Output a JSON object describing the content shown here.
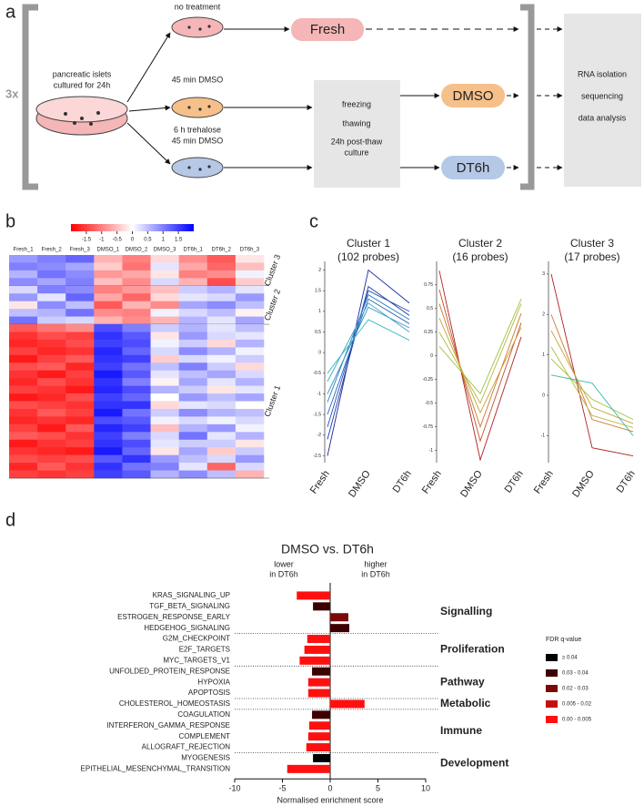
{
  "panel_labels": [
    "a",
    "b",
    "c",
    "d"
  ],
  "panel_a": {
    "replicates": "3x",
    "source_label": [
      "pancreatic islets",
      "cultured for 24h"
    ],
    "treatments": [
      [
        "no treatment"
      ],
      [
        "45 min DMSO"
      ],
      [
        "6 h trehalose",
        "45 min DMSO"
      ]
    ],
    "conditions": [
      "Fresh",
      "DMSO",
      "DT6h"
    ],
    "process": [
      "freezing",
      "thawing",
      "24h post-thaw",
      "culture"
    ],
    "analysis": [
      "RNA isolation",
      "sequencing",
      "data analysis"
    ]
  },
  "chart_data": [
    {
      "type": "heatmap",
      "columns": [
        "Fresh_1",
        "Fresh_2",
        "Fresh_3",
        "DMSO_1",
        "DMSO_2",
        "DMSO_3",
        "DT6h_1",
        "DT6h_2",
        "DT6h_3"
      ],
      "zlim": [
        -2,
        2
      ],
      "zticks": [
        -1.5,
        -1,
        -0.5,
        0,
        0.5,
        1,
        1.5
      ],
      "low_color": "#ff0000",
      "mid_color": "#ffffff",
      "high_color": "#0000ff",
      "clusters": [
        {
          "label": "Cluster 3",
          "rows": [
            [
              0.8,
              1.0,
              1.2,
              -0.6,
              -1.0,
              -0.3,
              -0.9,
              -1.3,
              -0.2
            ],
            [
              1.0,
              0.9,
              0.7,
              -0.4,
              -1.1,
              0.2,
              -0.7,
              -1.2,
              -0.5
            ],
            [
              0.6,
              1.1,
              0.9,
              -0.8,
              -0.7,
              -0.2,
              -1.0,
              -0.9,
              0.1
            ],
            [
              0.9,
              0.7,
              1.0,
              -0.5,
              -0.9,
              0.3,
              -0.6,
              -1.4,
              -0.4
            ]
          ]
        },
        {
          "label": "Cluster 2",
          "rows": [
            [
              0.3,
              1.0,
              0.9,
              -1.0,
              -0.8,
              -0.5,
              0.4,
              0.6,
              0.2
            ],
            [
              0.8,
              0.2,
              1.2,
              -0.7,
              -1.2,
              -0.3,
              0.2,
              0.3,
              0.8
            ],
            [
              -0.2,
              0.9,
              0.5,
              -1.3,
              -0.6,
              -0.9,
              0.7,
              0.9,
              0.5
            ],
            [
              0.5,
              0.6,
              1.1,
              -0.9,
              -1.0,
              0.1,
              0.3,
              0.5,
              -0.1
            ],
            [
              1.1,
              0.4,
              0.3,
              -0.6,
              -0.9,
              -0.6,
              0.6,
              0.2,
              0.7
            ]
          ]
        },
        {
          "label": "Cluster 1",
          "rows": [
            [
              -1.3,
              -1.1,
              -0.9,
              1.4,
              1.0,
              0.4,
              0.6,
              0.2,
              0.5
            ],
            [
              -1.6,
              -1.4,
              -1.5,
              1.6,
              1.3,
              -0.2,
              0.8,
              0.3,
              0.2
            ],
            [
              -1.7,
              -1.6,
              -1.4,
              1.5,
              1.4,
              0.1,
              0.4,
              -0.3,
              0.6
            ],
            [
              -1.5,
              -1.7,
              -1.6,
              1.7,
              1.2,
              0.3,
              0.9,
              0.6,
              0.1
            ],
            [
              -1.8,
              -1.5,
              -1.3,
              1.6,
              1.5,
              -0.4,
              0.3,
              0.1,
              0.4
            ],
            [
              -1.4,
              -1.3,
              -1.7,
              1.5,
              1.1,
              0.5,
              1.0,
              0.4,
              -0.3
            ],
            [
              -1.6,
              -1.8,
              -1.5,
              1.8,
              1.3,
              0.2,
              0.5,
              0.7,
              0.3
            ],
            [
              -1.7,
              -1.4,
              -1.6,
              1.6,
              1.0,
              -0.1,
              0.7,
              0.2,
              0.6
            ],
            [
              -1.5,
              -1.6,
              -1.8,
              1.7,
              1.4,
              0.6,
              0.4,
              -0.2,
              0.2
            ],
            [
              -1.8,
              -1.7,
              -1.4,
              1.5,
              1.2,
              0.0,
              0.8,
              0.5,
              0.7
            ],
            [
              -1.4,
              -1.5,
              -1.6,
              1.6,
              1.6,
              -0.3,
              0.2,
              0.3,
              0.0
            ],
            [
              -1.6,
              -1.3,
              -1.5,
              1.8,
              1.1,
              0.4,
              0.9,
              0.6,
              0.5
            ],
            [
              -1.7,
              -1.6,
              -1.7,
              1.4,
              1.3,
              0.1,
              0.3,
              0.1,
              0.3
            ],
            [
              -1.5,
              -1.8,
              -1.3,
              1.7,
              1.5,
              -0.5,
              0.6,
              0.8,
              0.1
            ],
            [
              -1.3,
              -1.4,
              -1.6,
              1.5,
              1.0,
              0.3,
              1.1,
              0.2,
              0.6
            ],
            [
              -1.8,
              -1.6,
              -1.5,
              1.6,
              1.4,
              0.2,
              0.4,
              0.4,
              -0.2
            ],
            [
              -1.6,
              -1.7,
              -1.8,
              1.8,
              1.2,
              -0.2,
              0.7,
              -0.4,
              0.4
            ],
            [
              -1.4,
              -1.5,
              -1.4,
              1.3,
              1.6,
              0.8,
              0.5,
              0.3,
              0.8
            ],
            [
              -1.7,
              -1.3,
              -1.6,
              1.6,
              1.1,
              1.0,
              0.2,
              -1.2,
              0.3
            ],
            [
              -1.5,
              -1.6,
              -1.5,
              1.5,
              1.3,
              0.6,
              0.9,
              0.5,
              -0.6
            ]
          ]
        }
      ]
    },
    {
      "type": "line",
      "title": "Cluster 1",
      "subtitle": "(102 probes)",
      "categories": [
        "Fresh",
        "DMSO",
        "DT6h"
      ],
      "ylim": [
        -2.6,
        2.1
      ],
      "yticks": [
        2,
        1.5,
        1,
        0.5,
        0,
        -0.5,
        -1,
        -1.5,
        -2,
        -2.5
      ],
      "series": [
        {
          "color": "#1a2a9c",
          "values": [
            -2.5,
            2.0,
            1.2
          ]
        },
        {
          "color": "#1f3aa8",
          "values": [
            -2.1,
            1.6,
            0.9
          ]
        },
        {
          "color": "#2450b4",
          "values": [
            -1.8,
            1.5,
            1.0
          ]
        },
        {
          "color": "#2a66bc",
          "values": [
            -1.5,
            1.3,
            0.7
          ]
        },
        {
          "color": "#2f7cc2",
          "values": [
            -1.2,
            1.4,
            0.8
          ]
        },
        {
          "color": "#3392c4",
          "values": [
            -1.0,
            1.1,
            0.6
          ]
        },
        {
          "color": "#36a6c4",
          "values": [
            -0.7,
            1.2,
            0.5
          ]
        },
        {
          "color": "#3ab8c2",
          "values": [
            -0.5,
            0.8,
            0.3
          ]
        }
      ]
    },
    {
      "type": "line",
      "title": "Cluster 2",
      "subtitle": "(16 probes)",
      "categories": [
        "Fresh",
        "DMSO",
        "DT6h"
      ],
      "ylim": [
        -1.1,
        0.95
      ],
      "yticks": [
        0.75,
        0.5,
        0.25,
        0,
        -0.25,
        -0.5,
        -0.75,
        -1
      ],
      "series": [
        {
          "color": "#b02020",
          "values": [
            0.9,
            -1.1,
            0.2
          ]
        },
        {
          "color": "#c0502a",
          "values": [
            0.7,
            -0.9,
            0.35
          ]
        },
        {
          "color": "#c87a30",
          "values": [
            0.55,
            -0.75,
            0.45
          ]
        },
        {
          "color": "#c9a035",
          "values": [
            0.4,
            -0.6,
            0.3
          ]
        },
        {
          "color": "#b8b83a",
          "values": [
            0.25,
            -0.5,
            0.55
          ]
        },
        {
          "color": "#9cc23e",
          "values": [
            0.1,
            -0.4,
            0.6
          ]
        }
      ]
    },
    {
      "type": "line",
      "title": "Cluster 3",
      "subtitle": "(17 probes)",
      "categories": [
        "Fresh",
        "DMSO",
        "DT6h"
      ],
      "ylim": [
        -1.6,
        3.2
      ],
      "yticks": [
        3,
        2,
        1,
        0,
        -1
      ],
      "series": [
        {
          "color": "#b02020",
          "values": [
            3.0,
            -1.3,
            -1.5
          ]
        },
        {
          "color": "#c87a30",
          "values": [
            2.0,
            -0.6,
            -0.9
          ]
        },
        {
          "color": "#c9a035",
          "values": [
            1.6,
            -0.3,
            -0.7
          ]
        },
        {
          "color": "#b8b83a",
          "values": [
            1.2,
            -0.5,
            -0.8
          ]
        },
        {
          "color": "#9cc23e",
          "values": [
            0.9,
            -0.1,
            -0.6
          ]
        },
        {
          "color": "#3ab8a8",
          "values": [
            0.5,
            0.3,
            -1.0
          ]
        }
      ]
    },
    {
      "type": "bar",
      "orientation": "horizontal",
      "title": "DMSO vs. DT6h",
      "xlabel": "Normalised enrichment score",
      "annotations": [
        [
          "lower",
          "in DT6h"
        ],
        [
          "higher",
          "in DT6h"
        ]
      ],
      "xlim": [
        -10,
        10
      ],
      "xticks": [
        -10,
        -5,
        0,
        5,
        10
      ],
      "groups": [
        {
          "label": "Signalling",
          "categories": [
            "KRAS_SIGNALING_UP",
            "TGF_BETA_SIGNALING",
            "ESTROGEN_RESPONSE_EARLY",
            "HEDGEHOG_SIGNALING"
          ],
          "values": [
            -3.5,
            -1.8,
            1.9,
            2.0
          ],
          "colors": [
            "#ff1010",
            "#3d0000",
            "#7a0a0a",
            "#3d0000"
          ]
        },
        {
          "label": "Proliferation",
          "categories": [
            "G2M_CHECKPOINT",
            "E2F_TARGETS",
            "MYC_TARGETS_V1"
          ],
          "values": [
            -2.4,
            -2.7,
            -3.2
          ],
          "colors": [
            "#ff1010",
            "#ff1010",
            "#ff1010"
          ]
        },
        {
          "label": "Pathway",
          "categories": [
            "UNFOLDED_PROTEIN_RESPONSE",
            "HYPOXIA",
            "APOPTOSIS"
          ],
          "values": [
            -1.9,
            -2.3,
            -2.3
          ],
          "colors": [
            "#3d0000",
            "#ff1010",
            "#ff1010"
          ]
        },
        {
          "label": "Metabolic",
          "categories": [
            "CHOLESTEROL_HOMEOSTASIS"
          ],
          "values": [
            3.6
          ],
          "colors": [
            "#ff1010"
          ]
        },
        {
          "label": "Immune",
          "categories": [
            "COAGULATION",
            "INTERFERON_GAMMA_RESPONSE",
            "COMPLEMENT",
            "ALLOGRAFT_REJECTION"
          ],
          "values": [
            -1.9,
            -2.2,
            -2.3,
            -2.5
          ],
          "colors": [
            "#3d0000",
            "#ff1010",
            "#ff1010",
            "#ff1010"
          ]
        },
        {
          "label": "Development",
          "categories": [
            "MYOGENESIS",
            "EPITHELIAL_MESENCHYMAL_TRANSITION"
          ],
          "values": [
            -1.8,
            -4.5
          ],
          "colors": [
            "#000000",
            "#ff1010"
          ]
        }
      ],
      "legend_title": "FDR q-value",
      "legend": [
        {
          "label": "≥ 0.04",
          "color": "#000000"
        },
        {
          "label": "0.03 - 0.04",
          "color": "#3d0000"
        },
        {
          "label": "0.02 - 0.03",
          "color": "#7a0a0a"
        },
        {
          "label": "0.005 - 0.02",
          "color": "#c41010"
        },
        {
          "label": "0.00 - 0.005",
          "color": "#ff1010"
        }
      ]
    }
  ]
}
